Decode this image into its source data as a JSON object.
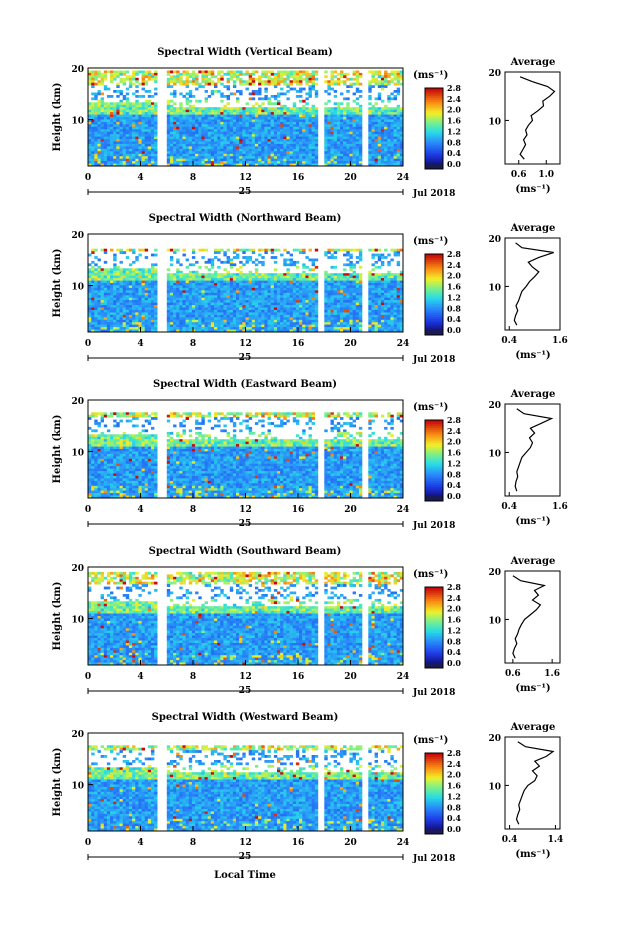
{
  "figure": {
    "xlabel": "Local Time",
    "day_label": "25",
    "date_label": "Jul 2018",
    "ylabel": "Height (km)",
    "unit_label": "(ms⁻¹)",
    "average_title": "Average",
    "average_xlabel": "(ms⁻¹)"
  },
  "chart_data": [
    {
      "type": "heatmap",
      "title": "Spectral Width (Vertical Beam)",
      "xlim": [
        0,
        24
      ],
      "ylim": [
        1,
        20
      ],
      "x_ticks": [
        0,
        4,
        8,
        12,
        16,
        20,
        24
      ],
      "y_ticks": [
        10,
        20
      ],
      "colorbar": {
        "min": 0.0,
        "max": 2.8,
        "ticks": [
          "0.0",
          "0.4",
          "0.8",
          "1.2",
          "1.6",
          "2.0",
          "2.4",
          "2.8"
        ]
      },
      "data_gaps_hours": [
        [
          5.3,
          6.0
        ],
        [
          17.5,
          17.9
        ],
        [
          21.0,
          21.4
        ]
      ],
      "valid_top_km": 19.5,
      "average_profile": {
        "type": "line",
        "xlim": [
          0.4,
          1.2
        ],
        "x_ticks": [
          "0.6",
          "1.0"
        ],
        "ylim": [
          1,
          20
        ],
        "y_ticks": [
          10,
          20
        ],
        "height_km": [
          2,
          3,
          4,
          5,
          6,
          7,
          8,
          9,
          10,
          11,
          12,
          13,
          14,
          15,
          16,
          17,
          18,
          19
        ],
        "value_ms": [
          0.68,
          0.62,
          0.66,
          0.7,
          0.67,
          0.72,
          0.7,
          0.74,
          0.8,
          0.78,
          0.88,
          0.96,
          0.95,
          1.05,
          1.12,
          1.02,
          0.8,
          0.62
        ]
      }
    },
    {
      "type": "heatmap",
      "title": "Spectral Width (Northward Beam)",
      "xlim": [
        0,
        24
      ],
      "ylim": [
        1,
        20
      ],
      "x_ticks": [
        0,
        4,
        8,
        12,
        16,
        20,
        24
      ],
      "y_ticks": [
        10,
        20
      ],
      "colorbar": {
        "min": 0.0,
        "max": 2.8,
        "ticks": [
          "0.0",
          "0.4",
          "0.8",
          "1.2",
          "1.6",
          "2.0",
          "2.4",
          "2.8"
        ]
      },
      "data_gaps_hours": [
        [
          5.3,
          6.0
        ],
        [
          17.5,
          17.9
        ],
        [
          21.0,
          21.4
        ]
      ],
      "valid_top_km": 17.0,
      "average_profile": {
        "type": "line",
        "xlim": [
          0.3,
          1.6
        ],
        "x_ticks": [
          "0.4",
          "1.6"
        ],
        "ylim": [
          1,
          20
        ],
        "y_ticks": [
          10,
          20
        ],
        "height_km": [
          2,
          3,
          4,
          5,
          6,
          7,
          8,
          9,
          10,
          11,
          12,
          13,
          14,
          15,
          16,
          17,
          18,
          19
        ],
        "value_ms": [
          0.58,
          0.52,
          0.55,
          0.6,
          0.56,
          0.62,
          0.66,
          0.7,
          0.8,
          0.88,
          1.0,
          1.1,
          0.95,
          0.85,
          1.1,
          1.45,
          0.7,
          0.55
        ]
      }
    },
    {
      "type": "heatmap",
      "title": "Spectral Width (Eastward Beam)",
      "xlim": [
        0,
        24
      ],
      "ylim": [
        1,
        20
      ],
      "x_ticks": [
        0,
        4,
        8,
        12,
        16,
        20,
        24
      ],
      "y_ticks": [
        10,
        20
      ],
      "colorbar": {
        "min": 0.0,
        "max": 2.8,
        "ticks": [
          "0.0",
          "0.4",
          "0.8",
          "1.2",
          "1.6",
          "2.0",
          "2.4",
          "2.8"
        ]
      },
      "data_gaps_hours": [
        [
          5.3,
          6.0
        ],
        [
          17.5,
          17.9
        ],
        [
          21.0,
          21.4
        ]
      ],
      "valid_top_km": 17.5,
      "average_profile": {
        "type": "line",
        "xlim": [
          0.3,
          1.6
        ],
        "x_ticks": [
          "0.4",
          "1.6"
        ],
        "ylim": [
          1,
          20
        ],
        "y_ticks": [
          10,
          20
        ],
        "height_km": [
          2,
          3,
          4,
          5,
          6,
          7,
          8,
          9,
          10,
          11,
          12,
          13,
          14,
          15,
          16,
          17,
          18,
          19
        ],
        "value_ms": [
          0.58,
          0.54,
          0.56,
          0.6,
          0.58,
          0.62,
          0.66,
          0.7,
          0.8,
          0.9,
          0.95,
          0.88,
          1.0,
          0.9,
          1.15,
          1.4,
          0.75,
          0.58
        ]
      }
    },
    {
      "type": "heatmap",
      "title": "Spectral Width (Southward Beam)",
      "xlim": [
        0,
        24
      ],
      "ylim": [
        1,
        20
      ],
      "x_ticks": [
        0,
        4,
        8,
        12,
        16,
        20,
        24
      ],
      "y_ticks": [
        10,
        20
      ],
      "colorbar": {
        "min": 0.0,
        "max": 2.8,
        "ticks": [
          "0.0",
          "0.4",
          "0.8",
          "1.2",
          "1.6",
          "2.0",
          "2.4",
          "2.8"
        ]
      },
      "data_gaps_hours": [
        [
          5.3,
          6.0
        ],
        [
          17.5,
          17.9
        ],
        [
          21.0,
          21.4
        ]
      ],
      "valid_top_km": 19.0,
      "average_profile": {
        "type": "line",
        "xlim": [
          0.4,
          1.8
        ],
        "x_ticks": [
          "0.6",
          "1.6"
        ],
        "ylim": [
          1,
          20
        ],
        "y_ticks": [
          10,
          20
        ],
        "height_km": [
          2,
          3,
          4,
          5,
          6,
          7,
          8,
          9,
          10,
          11,
          12,
          13,
          14,
          15,
          16,
          17,
          18,
          19
        ],
        "value_ms": [
          0.66,
          0.6,
          0.64,
          0.7,
          0.66,
          0.72,
          0.76,
          0.82,
          0.9,
          1.05,
          1.2,
          1.3,
          1.1,
          1.25,
          1.15,
          1.4,
          0.8,
          0.6
        ]
      }
    },
    {
      "type": "heatmap",
      "title": "Spectral Width (Westward Beam)",
      "xlim": [
        0,
        24
      ],
      "ylim": [
        1,
        20
      ],
      "x_ticks": [
        0,
        4,
        8,
        12,
        16,
        20,
        24
      ],
      "y_ticks": [
        10,
        20
      ],
      "colorbar": {
        "min": 0.0,
        "max": 2.8,
        "ticks": [
          "0.0",
          "0.4",
          "0.8",
          "1.2",
          "1.6",
          "2.0",
          "2.4",
          "2.8"
        ]
      },
      "data_gaps_hours": [
        [
          5.3,
          6.0
        ],
        [
          17.5,
          17.9
        ],
        [
          21.0,
          21.4
        ]
      ],
      "valid_top_km": 17.5,
      "average_profile": {
        "type": "line",
        "xlim": [
          0.3,
          1.5
        ],
        "x_ticks": [
          "0.4",
          "1.4"
        ],
        "ylim": [
          1,
          20
        ],
        "y_ticks": [
          10,
          20
        ],
        "height_km": [
          2,
          3,
          4,
          5,
          6,
          7,
          8,
          9,
          10,
          11,
          12,
          13,
          14,
          15,
          16,
          17,
          18,
          19
        ],
        "value_ms": [
          0.6,
          0.55,
          0.58,
          0.62,
          0.6,
          0.64,
          0.68,
          0.72,
          0.8,
          0.95,
          1.0,
          0.9,
          1.05,
          0.95,
          1.2,
          1.35,
          0.75,
          0.58
        ]
      }
    }
  ]
}
